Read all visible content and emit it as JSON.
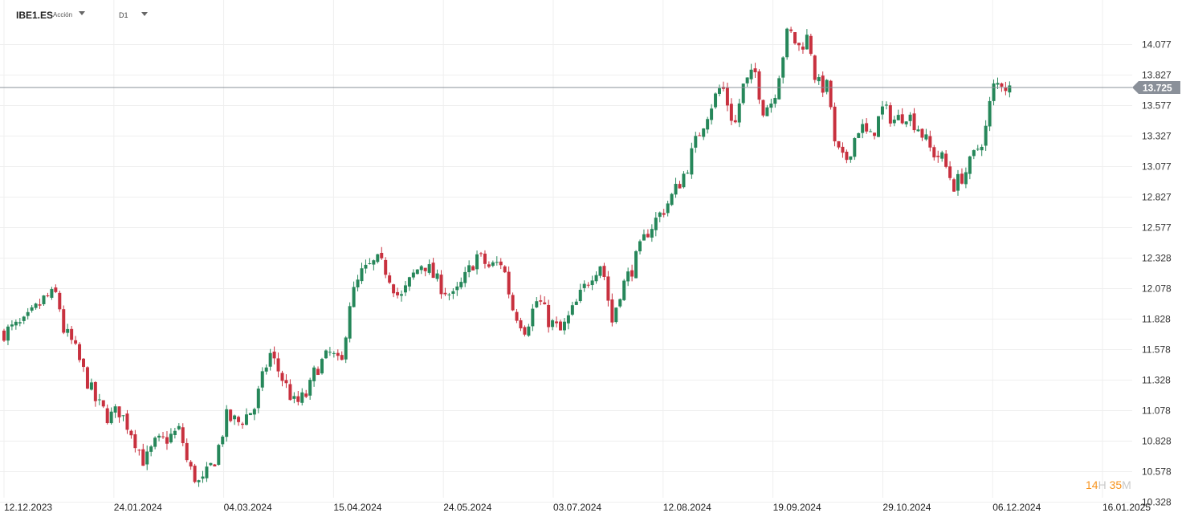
{
  "toolbar": {
    "symbol": "IBE1.ES",
    "symbol_type": "Acción",
    "timeframe": "D1"
  },
  "countdown": {
    "hours": "14",
    "hours_unit": "H",
    "minutes": "35",
    "minutes_unit": "M"
  },
  "colors": {
    "up": "#26875a",
    "down": "#c8313f",
    "grid": "#efefef",
    "price_line": "#8a9099",
    "price_tag": "#8a9099"
  },
  "chart_data": {
    "type": "candlestick",
    "instrument": "IBE1.ES",
    "timeframe": "D1",
    "yticks": [
      "14.077",
      "13.827",
      "13.577",
      "13.327",
      "13.077",
      "12.827",
      "12.577",
      "12.328",
      "12.078",
      "11.828",
      "11.578",
      "11.328",
      "11.078",
      "10.828",
      "10.578",
      "10.328"
    ],
    "ylim": [
      10.328,
      14.327
    ],
    "xtick_labels": [
      "12.12.2023",
      "24.01.2024",
      "04.03.2024",
      "15.04.2024",
      "24.05.2024",
      "03.07.2024",
      "12.08.2024",
      "19.09.2024",
      "29.10.2024",
      "06.12.2024",
      "16.01.2025"
    ],
    "current_price": "13.725",
    "close_path": [
      [
        "2023-12-12",
        11.72
      ],
      [
        "2023-12-20",
        11.79
      ],
      [
        "2023-12-28",
        12.0
      ],
      [
        "2024-01-02",
        12.03
      ],
      [
        "2024-01-04",
        11.75
      ],
      [
        "2024-01-08",
        11.62
      ],
      [
        "2024-01-12",
        11.4
      ],
      [
        "2024-01-17",
        11.15
      ],
      [
        "2024-01-22",
        11.02
      ],
      [
        "2024-01-26",
        11.08
      ],
      [
        "2024-01-31",
        10.9
      ],
      [
        "2024-02-05",
        10.65
      ],
      [
        "2024-02-09",
        10.8
      ],
      [
        "2024-02-14",
        10.85
      ],
      [
        "2024-02-19",
        10.92
      ],
      [
        "2024-02-22",
        10.62
      ],
      [
        "2024-02-27",
        10.46
      ],
      [
        "2024-03-04",
        10.7
      ],
      [
        "2024-03-08",
        11.02
      ],
      [
        "2024-03-13",
        10.98
      ],
      [
        "2024-03-19",
        11.1
      ],
      [
        "2024-03-25",
        11.55
      ],
      [
        "2024-03-29",
        11.38
      ],
      [
        "2024-04-04",
        11.12
      ],
      [
        "2024-04-09",
        11.22
      ],
      [
        "2024-04-12",
        11.42
      ],
      [
        "2024-04-18",
        11.55
      ],
      [
        "2024-04-22",
        11.42
      ],
      [
        "2024-04-25",
        11.95
      ],
      [
        "2024-04-30",
        12.2
      ],
      [
        "2024-05-06",
        12.3
      ],
      [
        "2024-05-10",
        12.22
      ],
      [
        "2024-05-15",
        11.98
      ],
      [
        "2024-05-20",
        12.18
      ],
      [
        "2024-05-24",
        12.3
      ],
      [
        "2024-05-30",
        12.12
      ],
      [
        "2024-06-05",
        12.0
      ],
      [
        "2024-06-10",
        12.18
      ],
      [
        "2024-06-14",
        12.35
      ],
      [
        "2024-06-19",
        12.25
      ],
      [
        "2024-06-24",
        12.3
      ],
      [
        "2024-06-28",
        11.92
      ],
      [
        "2024-07-03",
        11.75
      ],
      [
        "2024-07-08",
        12.0
      ],
      [
        "2024-07-12",
        11.82
      ],
      [
        "2024-07-17",
        11.72
      ],
      [
        "2024-07-23",
        11.95
      ],
      [
        "2024-07-29",
        12.2
      ],
      [
        "2024-08-02",
        12.3
      ],
      [
        "2024-08-06",
        11.8
      ],
      [
        "2024-08-09",
        12.05
      ],
      [
        "2024-08-14",
        12.25
      ],
      [
        "2024-08-20",
        12.55
      ],
      [
        "2024-08-26",
        12.72
      ],
      [
        "2024-08-30",
        12.85
      ],
      [
        "2024-09-04",
        13.05
      ],
      [
        "2024-09-09",
        13.35
      ],
      [
        "2024-09-13",
        13.55
      ],
      [
        "2024-09-18",
        13.75
      ],
      [
        "2024-09-23",
        13.4
      ],
      [
        "2024-09-26",
        13.72
      ],
      [
        "2024-10-01",
        13.85
      ],
      [
        "2024-10-04",
        13.55
      ],
      [
        "2024-10-08",
        13.62
      ],
      [
        "2024-10-14",
        14.2
      ],
      [
        "2024-10-18",
        14.05
      ],
      [
        "2024-10-22",
        14.15
      ],
      [
        "2024-10-25",
        13.75
      ],
      [
        "2024-10-30",
        13.72
      ],
      [
        "2024-11-01",
        13.25
      ],
      [
        "2024-11-05",
        13.1
      ],
      [
        "2024-11-11",
        13.42
      ],
      [
        "2024-11-15",
        13.3
      ],
      [
        "2024-11-20",
        13.55
      ],
      [
        "2024-11-25",
        13.45
      ],
      [
        "2024-11-29",
        13.52
      ],
      [
        "2024-12-04",
        13.4
      ],
      [
        "2024-12-09",
        13.2
      ],
      [
        "2024-12-13",
        13.15
      ],
      [
        "2024-12-18",
        12.92
      ],
      [
        "2024-12-23",
        13.05
      ],
      [
        "2024-12-30",
        13.35
      ],
      [
        "2025-01-02",
        13.72
      ],
      [
        "2025-01-06",
        13.78
      ],
      [
        "2025-01-08",
        13.7
      ],
      [
        "2025-01-10",
        13.725
      ]
    ]
  }
}
